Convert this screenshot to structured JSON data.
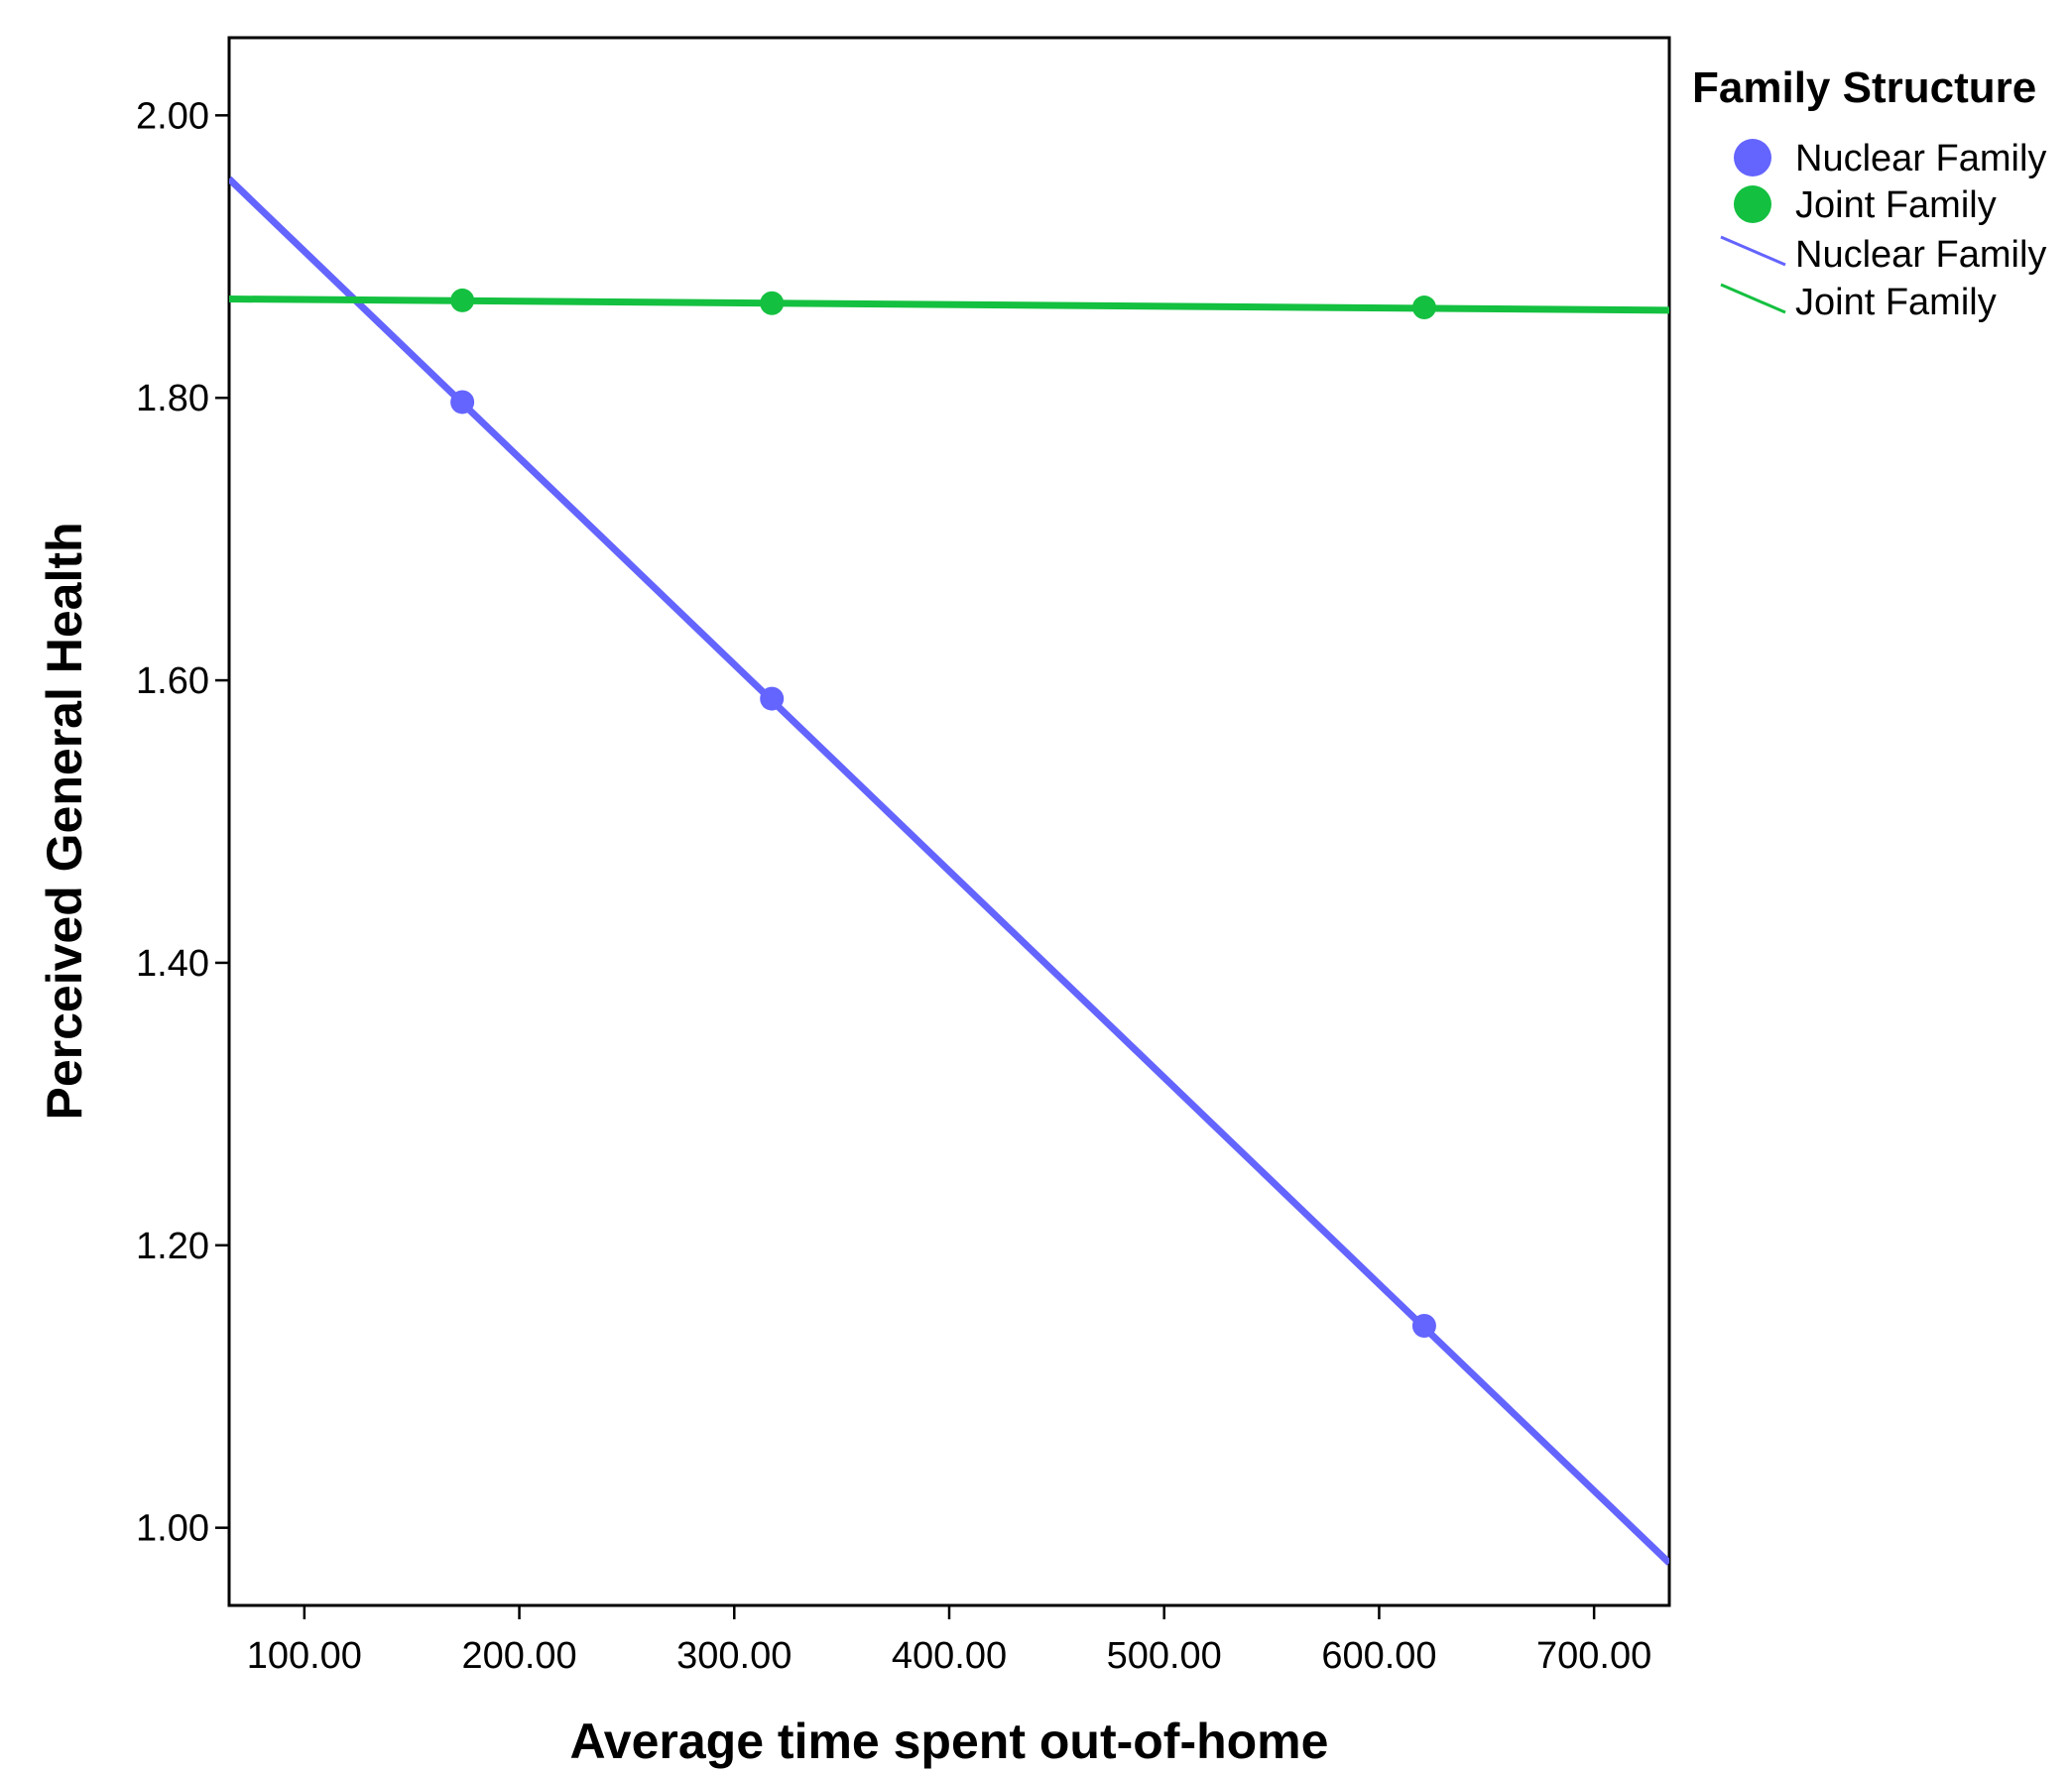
{
  "chart_data": {
    "type": "scatter",
    "title": "",
    "xlabel": "Average time spent out-of-home",
    "ylabel": "Perceived General Health",
    "xlim": [
      65,
      735
    ],
    "ylim": [
      0.945,
      2.055
    ],
    "x_ticks": [
      100,
      200,
      300,
      400,
      500,
      600,
      700
    ],
    "x_tick_labels": [
      "100.00",
      "200.00",
      "300.00",
      "400.00",
      "500.00",
      "600.00",
      "700.00"
    ],
    "y_ticks": [
      1.0,
      1.2,
      1.4,
      1.6,
      1.8,
      2.0
    ],
    "y_tick_labels": [
      "1.00",
      "1.20",
      "1.40",
      "1.60",
      "1.80",
      "2.00"
    ],
    "grid": false,
    "legend": {
      "title": "Family Structure",
      "placement": "right",
      "entries": [
        {
          "label": "Nuclear Family",
          "kind": "marker",
          "color": "#6464ff"
        },
        {
          "label": "Joint Family",
          "kind": "marker",
          "color": "#14c040"
        },
        {
          "label": "Nuclear Family",
          "kind": "line",
          "color": "#6464ff"
        },
        {
          "label": "Joint Family",
          "kind": "line",
          "color": "#14c040"
        }
      ]
    },
    "series": [
      {
        "name": "Nuclear Family",
        "color": "#6464ff",
        "points": [
          {
            "x": 173.5,
            "y": 1.797
          },
          {
            "x": 317.5,
            "y": 1.587
          },
          {
            "x": 621,
            "y": 1.143
          }
        ],
        "fit_line": [
          {
            "x": 65,
            "y": 1.955
          },
          {
            "x": 735,
            "y": 0.975
          }
        ]
      },
      {
        "name": "Joint Family",
        "color": "#14c040",
        "points": [
          {
            "x": 173.5,
            "y": 1.869
          },
          {
            "x": 317.5,
            "y": 1.867
          },
          {
            "x": 621,
            "y": 1.864
          }
        ],
        "fit_line": [
          {
            "x": 65,
            "y": 1.87
          },
          {
            "x": 735,
            "y": 1.862
          }
        ]
      }
    ]
  }
}
